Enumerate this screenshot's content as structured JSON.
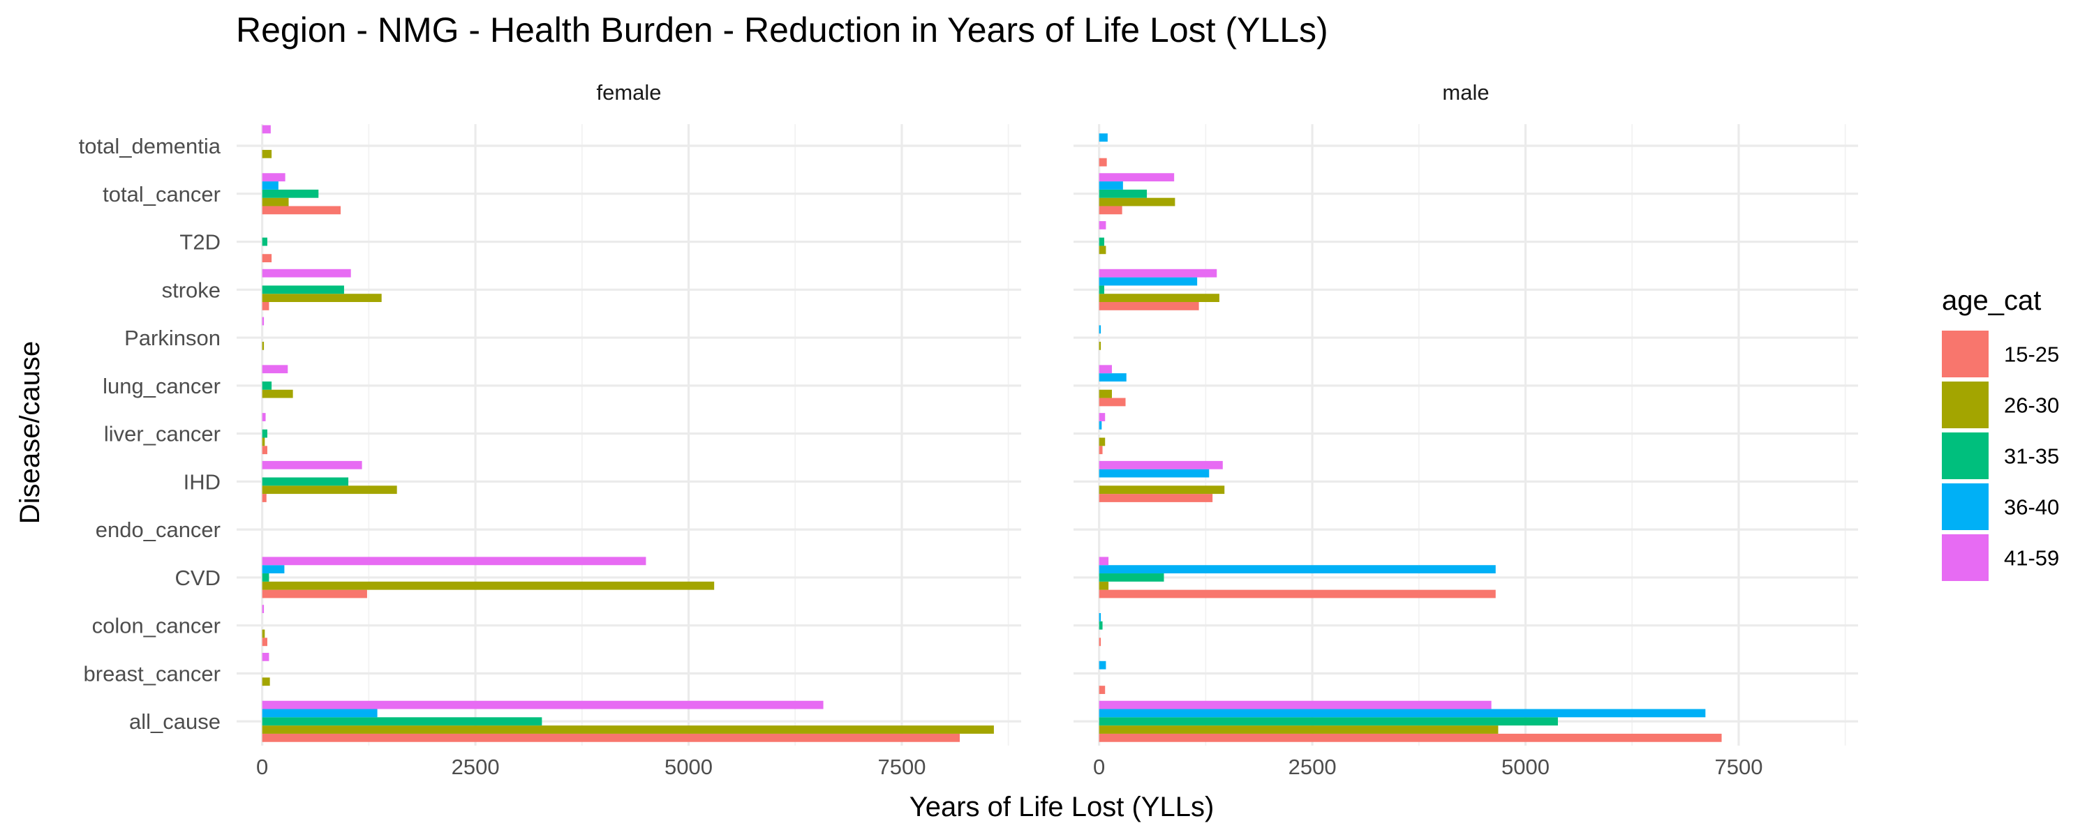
{
  "chart_data": {
    "type": "bar",
    "orientation": "horizontal",
    "title": "Region -  NMG  - Health Burden -  Reduction in Years of Life Lost (YLLs)",
    "xlabel": "Years of Life Lost (YLLs)",
    "ylabel": "Disease/cause",
    "xlim": [
      -300,
      8900
    ],
    "xticks": [
      0,
      2500,
      5000,
      7500
    ],
    "x_tick_labels": [
      "0",
      "2500",
      "5000",
      "7500"
    ],
    "grid": true,
    "legend": {
      "title": "age_cat",
      "position": "right"
    },
    "categories": [
      "all_cause",
      "breast_cancer",
      "colon_cancer",
      "CVD",
      "endo_cancer",
      "IHD",
      "liver_cancer",
      "lung_cancer",
      "Parkinson",
      "stroke",
      "T2D",
      "total_cancer",
      "total_dementia"
    ],
    "series": [
      {
        "name": "15-25",
        "color": "#F8766D"
      },
      {
        "name": "26-30",
        "color": "#A3A500"
      },
      {
        "name": "31-35",
        "color": "#00BF7D"
      },
      {
        "name": "36-40",
        "color": "#00B0F6"
      },
      {
        "name": "41-59",
        "color": "#E76BF3"
      }
    ],
    "panels": [
      {
        "label": "female",
        "values": {
          "15-25": [
            8180,
            0,
            60,
            1230,
            0,
            50,
            60,
            0,
            0,
            80,
            110,
            920,
            0
          ],
          "26-30": [
            8580,
            90,
            30,
            5300,
            0,
            1580,
            30,
            360,
            20,
            1400,
            0,
            310,
            110
          ],
          "31-35": [
            3280,
            0,
            0,
            80,
            0,
            1010,
            60,
            110,
            0,
            960,
            60,
            660,
            0
          ],
          "36-40": [
            1350,
            0,
            0,
            260,
            0,
            0,
            0,
            0,
            0,
            0,
            0,
            190,
            0
          ],
          "41-59": [
            6580,
            80,
            20,
            4500,
            0,
            1170,
            40,
            300,
            20,
            1040,
            0,
            270,
            100
          ]
        }
      },
      {
        "label": "male",
        "values": {
          "15-25": [
            7300,
            70,
            20,
            4650,
            0,
            1330,
            40,
            310,
            0,
            1170,
            0,
            270,
            90
          ],
          "26-30": [
            4680,
            0,
            0,
            110,
            0,
            1470,
            70,
            150,
            20,
            1410,
            80,
            890,
            0
          ],
          "31-35": [
            5380,
            0,
            40,
            760,
            0,
            0,
            0,
            0,
            0,
            60,
            60,
            560,
            0
          ],
          "36-40": [
            7110,
            80,
            20,
            4650,
            0,
            1290,
            30,
            320,
            20,
            1150,
            0,
            280,
            100
          ],
          "41-59": [
            4600,
            0,
            0,
            110,
            0,
            1450,
            70,
            150,
            0,
            1380,
            80,
            880,
            0
          ]
        }
      }
    ]
  }
}
